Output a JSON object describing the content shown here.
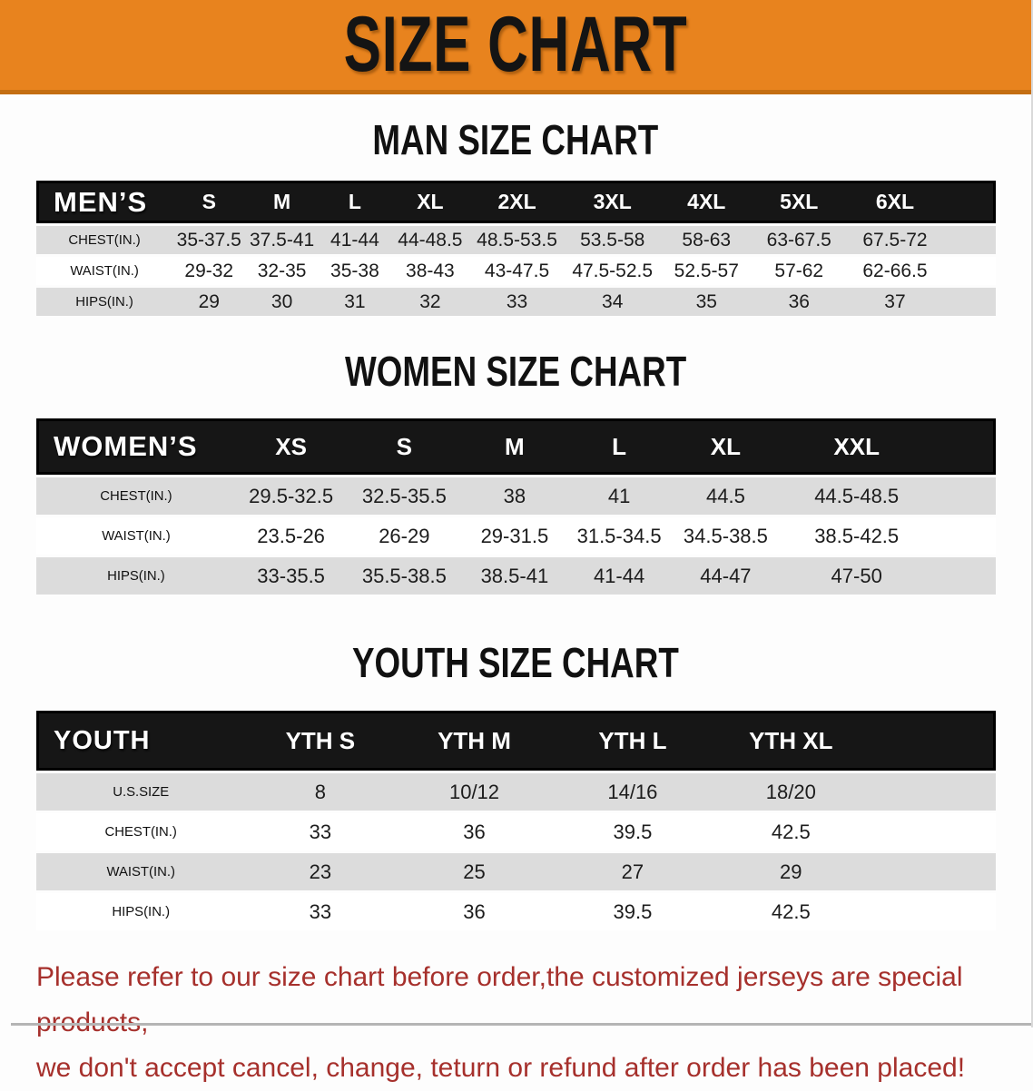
{
  "banner": {
    "title": "SIZE CHART"
  },
  "sections": [
    {
      "title": "MAN SIZE CHART",
      "table": {
        "header_label": "MEN’S",
        "columns": [
          "S",
          "M",
          "L",
          "XL",
          "2XL",
          "3XL",
          "4XL",
          "5XL",
          "6XL"
        ],
        "rows": [
          {
            "label": "CHEST(IN.)",
            "values": [
              "35-37.5",
              "37.5-41",
              "41-44",
              "44-48.5",
              "48.5-53.5",
              "53.5-58",
              "58-63",
              "63-67.5",
              "67.5-72"
            ]
          },
          {
            "label": "WAIST(IN.)",
            "values": [
              "29-32",
              "32-35",
              "35-38",
              "38-43",
              "43-47.5",
              "47.5-52.5",
              "52.5-57",
              "57-62",
              "62-66.5"
            ]
          },
          {
            "label": "HIPS(IN.)",
            "values": [
              "29",
              "30",
              "31",
              "32",
              "33",
              "34",
              "35",
              "36",
              "37"
            ]
          }
        ]
      }
    },
    {
      "title": "WOMEN SIZE CHART",
      "table": {
        "header_label": "WOMEN’S",
        "columns": [
          "XS",
          "S",
          "M",
          "L",
          "XL",
          "XXL"
        ],
        "rows": [
          {
            "label": "CHEST(IN.)",
            "values": [
              "29.5-32.5",
              "32.5-35.5",
              "38",
              "41",
              "44.5",
              "44.5-48.5"
            ]
          },
          {
            "label": "WAIST(IN.)",
            "values": [
              "23.5-26",
              "26-29",
              "29-31.5",
              "31.5-34.5",
              "34.5-38.5",
              "38.5-42.5"
            ]
          },
          {
            "label": "HIPS(IN.)",
            "values": [
              "33-35.5",
              "35.5-38.5",
              "38.5-41",
              "41-44",
              "44-47",
              "47-50"
            ]
          }
        ]
      }
    },
    {
      "title": "YOUTH SIZE CHART",
      "table": {
        "header_label": "YOUTH",
        "columns": [
          "YTH S",
          "YTH M",
          "YTH L",
          "YTH XL"
        ],
        "rows": [
          {
            "label": "U.S.SIZE",
            "values": [
              "8",
              "10/12",
              "14/16",
              "18/20"
            ]
          },
          {
            "label": "CHEST(IN.)",
            "values": [
              "33",
              "36",
              "39.5",
              "42.5"
            ]
          },
          {
            "label": "WAIST(IN.)",
            "values": [
              "23",
              "25",
              "27",
              "29"
            ]
          },
          {
            "label": "HIPS(IN.)",
            "values": [
              "33",
              "36",
              "39.5",
              "42.5"
            ]
          }
        ]
      }
    }
  ],
  "footer": {
    "line1": "Please refer to our size chart before order,the customized jerseys are special products,",
    "line2": "we don't accept cancel, change, teturn or refund after order has been placed!"
  },
  "colors": {
    "banner_orange": "#E8831E",
    "banner_edge": "#C46E12",
    "bar_black": "#161616",
    "row_shade": "#DCDCDC",
    "note_red": "#A6302C"
  }
}
